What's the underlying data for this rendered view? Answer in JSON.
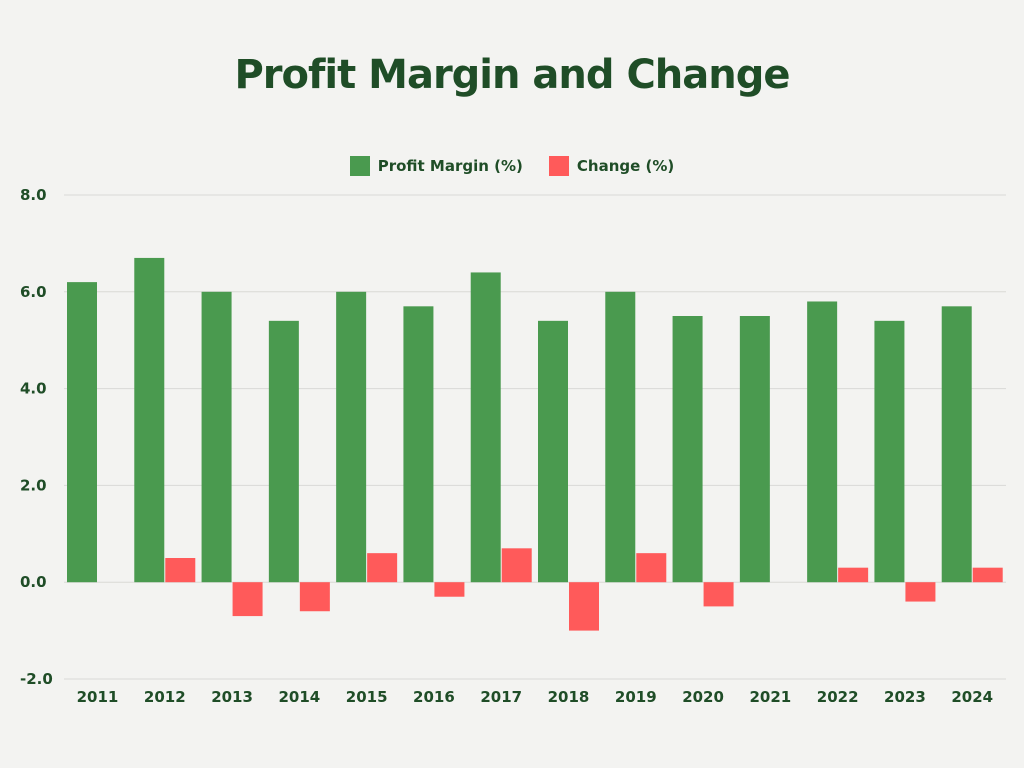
{
  "chart_data": {
    "type": "bar",
    "title": "Profit Margin and Change",
    "xlabel": "",
    "ylabel": "",
    "categories": [
      "2011",
      "2012",
      "2013",
      "2014",
      "2015",
      "2016",
      "2017",
      "2018",
      "2019",
      "2020",
      "2021",
      "2022",
      "2023",
      "2024"
    ],
    "series": [
      {
        "name": "Profit Margin (%)",
        "color": "#4a9a4f",
        "values": [
          6.2,
          6.7,
          6.0,
          5.4,
          6.0,
          5.7,
          6.4,
          5.4,
          6.0,
          5.5,
          5.5,
          5.8,
          5.4,
          5.7
        ]
      },
      {
        "name": "Change (%)",
        "color": "#ff5a5a",
        "values": [
          0.0,
          0.5,
          -0.7,
          -0.6,
          0.6,
          -0.3,
          0.7,
          -1.0,
          0.6,
          -0.5,
          0.0,
          0.3,
          -0.4,
          0.3
        ]
      }
    ],
    "ylim": [
      -2.0,
      8.0
    ],
    "yticks": [
      "-2.0",
      "0.0",
      "2.0",
      "4.0",
      "6.0",
      "8.0"
    ],
    "grid": true,
    "legend_position": "top-center"
  }
}
